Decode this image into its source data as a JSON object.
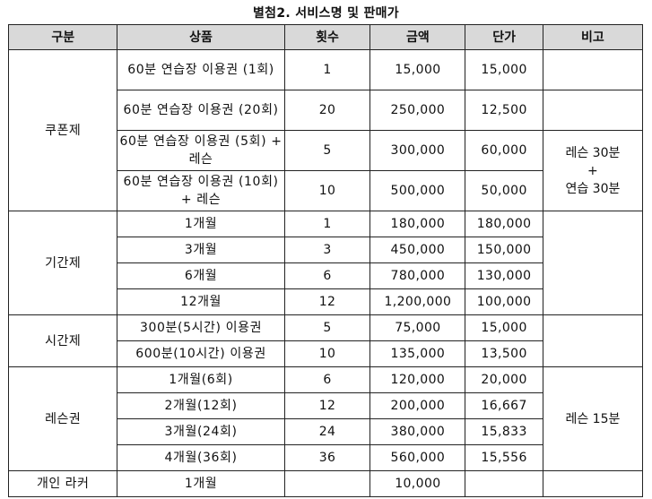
{
  "title": "별첨2. 서비스명 및 판매가",
  "headers": [
    "구분",
    "상품",
    "횟수",
    "금액",
    "단가",
    "비고"
  ],
  "groups": [
    {
      "category": "쿠폰제",
      "rows": [
        {
          "product": "60분 연습장 이용권 (1회)",
          "count": "1",
          "amount": "15,000",
          "unit_price": "15,000"
        },
        {
          "product": "60분 연습장 이용권 (20회)",
          "count": "20",
          "amount": "250,000",
          "unit_price": "12,500"
        },
        {
          "product": "60분 연습장 이용권 (5회) + 레슨",
          "count": "5",
          "amount": "300,000",
          "unit_price": "60,000"
        },
        {
          "product": "60분 연습장 이용권 (10회) + 레슨",
          "count": "10",
          "amount": "500,000",
          "unit_price": "50,000"
        }
      ],
      "note_lines": [
        "레슨 30분",
        "+",
        "연습 30분"
      ]
    },
    {
      "category": "기간제",
      "rows": [
        {
          "product": "1개월",
          "count": "1",
          "amount": "180,000",
          "unit_price": "180,000"
        },
        {
          "product": "3개월",
          "count": "3",
          "amount": "450,000",
          "unit_price": "150,000"
        },
        {
          "product": "6개월",
          "count": "6",
          "amount": "780,000",
          "unit_price": "130,000"
        },
        {
          "product": "12개월",
          "count": "12",
          "amount": "1,200,000",
          "unit_price": "100,000"
        }
      ]
    },
    {
      "category": "시간제",
      "rows": [
        {
          "product": "300분(5시간) 이용권",
          "count": "5",
          "amount": "75,000",
          "unit_price": "15,000"
        },
        {
          "product": "600분(10시간) 이용권",
          "count": "10",
          "amount": "135,000",
          "unit_price": "13,500"
        }
      ]
    },
    {
      "category": "레슨권",
      "rows": [
        {
          "product": "1개월(6회)",
          "count": "6",
          "amount": "120,000",
          "unit_price": "20,000"
        },
        {
          "product": "2개월(12회)",
          "count": "12",
          "amount": "200,000",
          "unit_price": "16,667"
        },
        {
          "product": "3개월(24회)",
          "count": "24",
          "amount": "380,000",
          "unit_price": "15,833"
        },
        {
          "product": "4개월(36회)",
          "count": "36",
          "amount": "560,000",
          "unit_price": "15,556"
        }
      ],
      "note": "레슨 15분"
    },
    {
      "category": "개인 라커",
      "rows": [
        {
          "product": "1개월",
          "count": "",
          "amount": "10,000",
          "unit_price": ""
        }
      ]
    }
  ]
}
